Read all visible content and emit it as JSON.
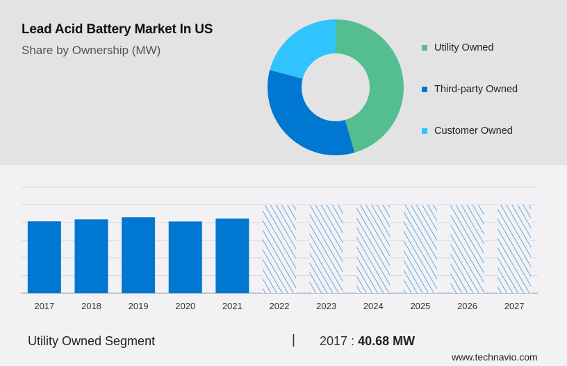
{
  "header": {
    "title": "Lead Acid Battery Market In US",
    "subtitle": "Share by Ownership (MW)"
  },
  "chart_data": [
    {
      "type": "pie",
      "variant": "donut",
      "title": "Lead Acid Battery Market In US",
      "subtitle": "Share by Ownership (MW)",
      "legend_position": "right",
      "slices": [
        {
          "label": "Utility Owned",
          "value": 45.5,
          "color": "#55be90"
        },
        {
          "label": "Third-party Owned",
          "value": 33.6,
          "color": "#0077d0"
        },
        {
          "label": "Customer Owned",
          "value": 20.9,
          "color": "#30c3fd"
        }
      ]
    },
    {
      "type": "bar",
      "categories": [
        "2017",
        "2018",
        "2019",
        "2020",
        "2021",
        "2022",
        "2023",
        "2024",
        "2025",
        "2026",
        "2027"
      ],
      "values": [
        40.68,
        41.8,
        43.0,
        40.6,
        42.2,
        null,
        null,
        null,
        null,
        null,
        null
      ],
      "forecast_categories": [
        "2022",
        "2023",
        "2024",
        "2025",
        "2026",
        "2027"
      ],
      "ylim": [
        0,
        60
      ],
      "grid": true,
      "bar_color": "#0077d0",
      "forecast_style": "hatched"
    }
  ],
  "footer": {
    "segment_label": "Utility Owned Segment",
    "separator": "|",
    "year": "2017",
    "colon": " : ",
    "value": "40.68 MW",
    "website": "www.technavio.com"
  }
}
